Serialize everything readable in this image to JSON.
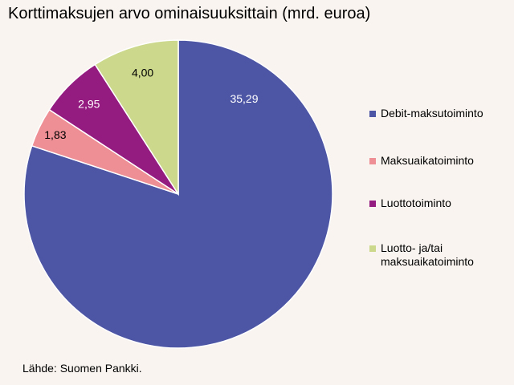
{
  "title": "Korttimaksujen arvo ominaisuuksittain (mrd. euroa)",
  "source": "Lähde: Suomen Pankki.",
  "chart_data": {
    "type": "pie",
    "title": "Korttimaksujen arvo ominaisuuksittain (mrd. euroa)",
    "start_angle": "top",
    "direction": "clockwise",
    "legend_position": "right",
    "slices": [
      {
        "name": "Debit-maksutoiminto",
        "value": 35.29,
        "label": "35,29",
        "color": "#4d55a5",
        "label_color": "#ffffff"
      },
      {
        "name": "Maksuaikatoiminto",
        "value": 1.83,
        "label": "1,83",
        "color": "#ee8f95",
        "label_color": "#000000"
      },
      {
        "name": "Luottotoiminto",
        "value": 2.95,
        "label": "2,95",
        "color": "#941b80",
        "label_color": "#ffffff"
      },
      {
        "name": "Luotto- ja/tai maksuaikatoiminto",
        "value": 4.0,
        "label": "4,00",
        "color": "#ccd88c",
        "label_color": "#000000"
      }
    ]
  }
}
